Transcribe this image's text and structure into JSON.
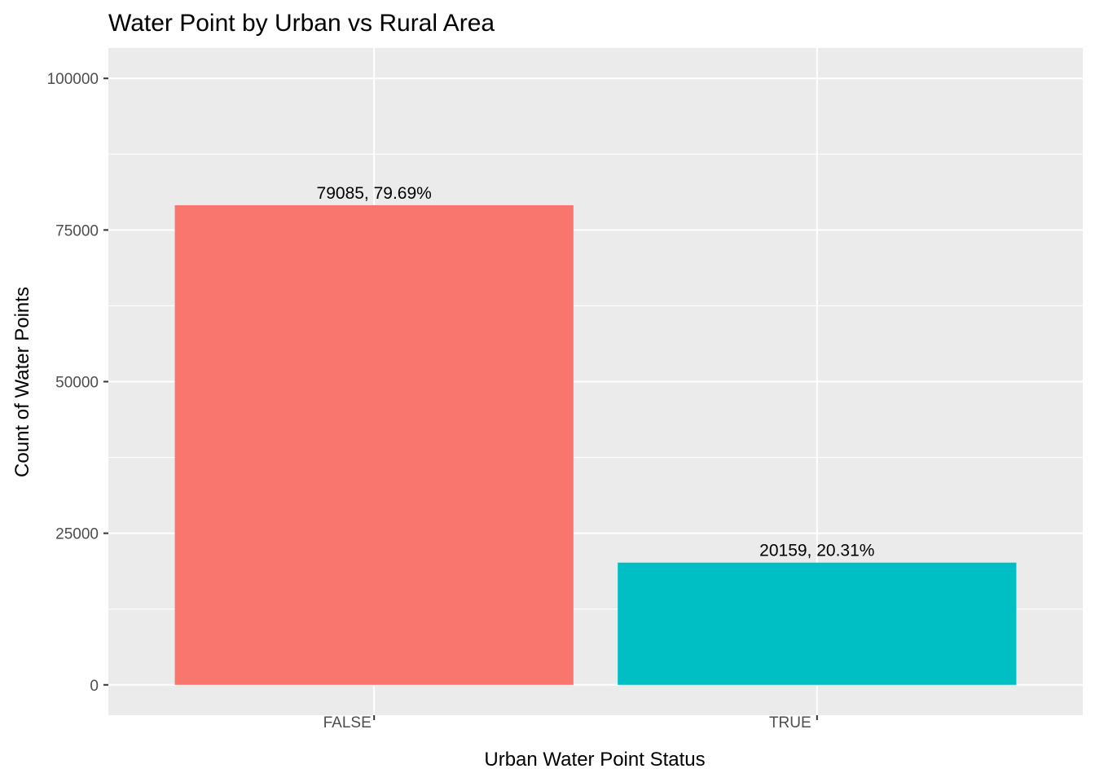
{
  "chart_data": {
    "type": "bar",
    "title": "Water Point by Urban vs Rural Area",
    "xlabel": "Urban Water Point Status",
    "ylabel": "Count of Water Points",
    "categories": [
      "FALSE",
      "TRUE"
    ],
    "category_tick_labels": [
      "FALSE",
      "TRUE"
    ],
    "values": [
      79085,
      20159
    ],
    "data_labels": [
      "79085, 79.69%",
      "20159, 20.31%"
    ],
    "ylim": [
      -5000,
      105000
    ],
    "y_ticks": [
      0,
      25000,
      50000,
      75000,
      100000
    ],
    "y_tick_labels": [
      "0",
      "25000",
      "50000",
      "75000",
      "100000"
    ],
    "grid": true,
    "legend": "none",
    "colors": {
      "bars": [
        "#f8766d",
        "#00bfc4"
      ],
      "panel_background": "#ebebeb",
      "grid": "#ffffff"
    }
  }
}
